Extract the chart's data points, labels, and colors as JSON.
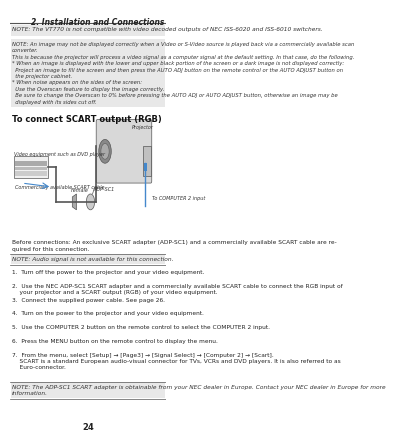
{
  "title_right": "2. Installation and Connections",
  "page_number": "24",
  "background_color": "#ffffff",
  "text_color": "#000000",
  "note1": "NOTE: The VT770 is not compatible with video decoded outputs of NEC ISS-6020 and ISS-6010 switchers.",
  "note2_line1": "NOTE: An image may not be displayed correctly when a Video or S-Video source is played back via a commercially available scan",
  "note2_line2": "converter.",
  "note2_line3": "This is because the projector will process a video signal as a computer signal at the default setting. In that case, do the following.",
  "note2_bullet1a": "* When an image is displayed with the lower and upper black portion of the screen or a dark image is not displayed correctly:",
  "note2_bullet1b": "  Project an image to fill the screen and then press the AUTO ADJ button on the remote control or the AUTO ADJUST button on",
  "note2_bullet1c": "  the projector cabinet.",
  "note2_bullet2a": "* When noise appears on the sides of the screen:",
  "note2_bullet2b": "  Use the Overscan feature to display the image correctly.",
  "note2_bullet2c": "  Be sure to change the Overscan to 0% before pressing the AUTO ADJ or AUTO ADJUST button, otherwise an image may be",
  "note2_bullet2d": "  displayed with its sides cut off.",
  "section_title": "To connect SCART output (RGB)",
  "label_projector": "Projector",
  "label_video_eq": "Video equipment such as DVD player",
  "label_female": "Female",
  "label_computer2": "To COMPUTER 2 input",
  "label_adpsc1": "ADP-SC1",
  "label_scart_cable": "Commercially available SCART cable",
  "before_text1": "Before connections: An exclusive SCART adapter (ADP-SC1) and a commercially available SCART cable are re-",
  "before_text2": "quired for this connection.",
  "note_audio": "NOTE: Audio signal is not available for this connection.",
  "steps": [
    "1.  Turn off the power to the projector and your video equipment.",
    "2.  Use the NEC ADP-SC1 SCART adapter and a commercially available SCART cable to connect the RGB input of\n    your projector and a SCART output (RGB) of your video equipment.",
    "3.  Connect the supplied power cable. See page 26.",
    "4.  Turn on the power to the projector and your video equipment.",
    "5.  Use the COMPUTER 2 button on the remote control to select the COMPUTER 2 input.",
    "6.  Press the MENU button on the remote control to display the menu.",
    "7.  From the menu, select [Setup] → [Page3] → [Signal Select] → [Computer 2] → [Scart].\n    SCART is a standard European audio-visual connector for TVs, VCRs and DVD players. It is also referred to as\n    Euro-connector."
  ],
  "note_bottom": "NOTE: The ADP-SC1 SCART adapter is obtainable from your NEC dealer in Europe. Contact your NEC dealer in Europe for more\ninformation."
}
